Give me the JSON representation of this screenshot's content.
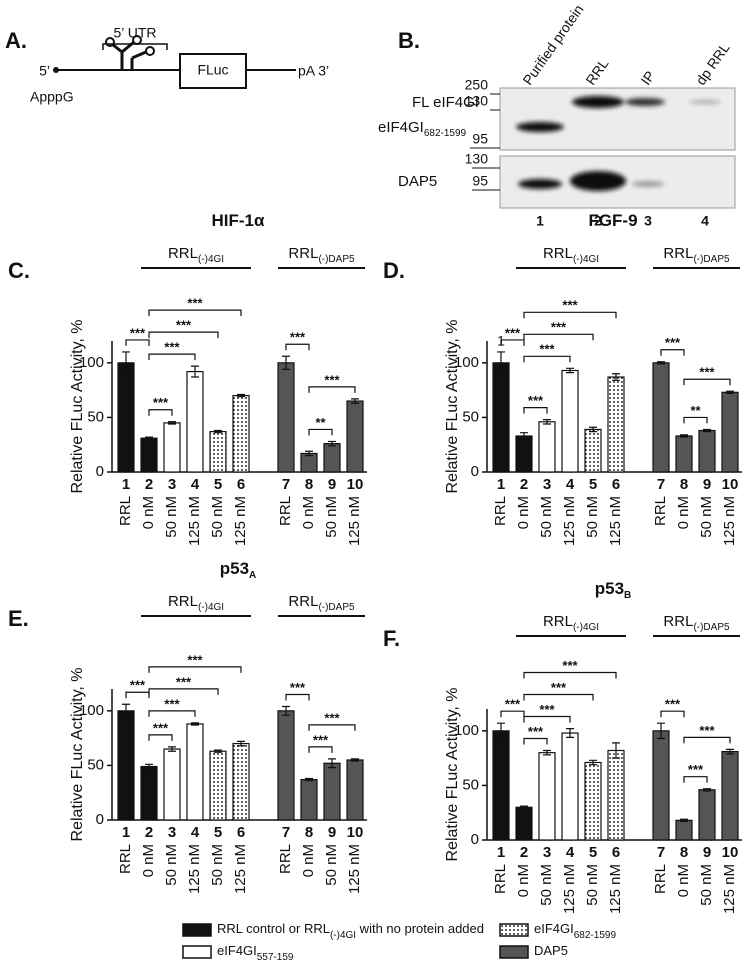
{
  "panel_a": {
    "letter": "A.",
    "utr": "5’ UTR",
    "five": "5’",
    "cap": "ApppG",
    "gene": "FLuc",
    "tail": "pA 3’"
  },
  "panel_b": {
    "letter": "B.",
    "lanes": [
      "Purified protein",
      "RRL",
      "IP",
      "dp RRL"
    ],
    "lane_numbers": [
      "1",
      "2",
      "3",
      "4"
    ],
    "rows": [
      {
        "name": "FL eIF4GI"
      },
      {
        "name": "eIF4GI",
        "sub": "682-1599"
      },
      {
        "name": "DAP5"
      }
    ],
    "markers_top": [
      "250",
      "130",
      "95"
    ],
    "markers_bottom": [
      "130",
      "95"
    ]
  },
  "chart_data": [
    {
      "type": "bar",
      "letter": "C.",
      "title": "HIF-1α",
      "ylabel": "Relative FLuc Activity, %",
      "ylim": [
        0,
        120
      ],
      "yticks": [
        0,
        50,
        100
      ],
      "bar_numbers": [
        "1",
        "2",
        "3",
        "4",
        "5",
        "6",
        "7",
        "8",
        "9",
        "10"
      ],
      "categories": [
        "RRL",
        "0 nM",
        "50 nM",
        "125 nM",
        "50 nM",
        "125 nM",
        "RRL",
        "0 nM",
        "50 nM",
        "125 nM"
      ],
      "values": [
        100,
        31,
        45,
        92,
        37,
        70,
        100,
        17,
        26,
        65
      ],
      "errors": [
        10,
        1,
        1,
        5,
        1,
        1,
        6,
        2,
        2,
        2
      ],
      "colors": [
        "#111111",
        "#111111",
        "#ffffff",
        "#ffffff",
        "dotted",
        "dotted",
        "#555555",
        "#555555",
        "#555555",
        "#555555"
      ],
      "groups": [
        {
          "name": "RRL",
          "sub": "(-)4GI",
          "from": 1,
          "to": 5
        },
        {
          "name": "RRL",
          "sub": "(-)DAP5",
          "from": 6,
          "to": 9
        }
      ],
      "significance": [
        {
          "from": 1,
          "to": 2,
          "label": "***"
        },
        {
          "from": 1,
          "to": 3,
          "label": "***"
        },
        {
          "from": 1,
          "to": 4,
          "label": "***"
        },
        {
          "from": 1,
          "to": 5,
          "label": "***"
        },
        {
          "from": 0,
          "to": 1,
          "label": "***"
        },
        {
          "from": 7,
          "to": 8,
          "label": "**"
        },
        {
          "from": 7,
          "to": 9,
          "label": "***"
        },
        {
          "from": 6,
          "to": 7,
          "label": "***"
        }
      ]
    },
    {
      "type": "bar",
      "letter": "D.",
      "title": "FGF-9",
      "ylabel": "Relative FLuc Activity, %",
      "ylim": [
        0,
        120
      ],
      "yticks": [
        0,
        50,
        100
      ],
      "bar_numbers": [
        "1",
        "2",
        "3",
        "4",
        "5",
        "6",
        "7",
        "8",
        "9",
        "10"
      ],
      "categories": [
        "RRL",
        "0 nM",
        "50 nM",
        "125 nM",
        "50 nM",
        "125 nM",
        "RRL",
        "0 nM",
        "50 nM",
        "125 nM"
      ],
      "values": [
        100,
        33,
        46,
        93,
        39,
        87,
        100,
        33,
        38,
        73
      ],
      "errors": [
        10,
        3,
        2,
        2,
        2,
        3,
        1,
        1,
        1,
        1
      ],
      "colors": [
        "#111111",
        "#111111",
        "#ffffff",
        "#ffffff",
        "dotted",
        "dotted",
        "#555555",
        "#555555",
        "#555555",
        "#555555"
      ],
      "groups": [
        {
          "name": "RRL",
          "sub": "(-)4GI",
          "from": 1,
          "to": 5
        },
        {
          "name": "RRL",
          "sub": "(-)DAP5",
          "from": 6,
          "to": 9
        }
      ],
      "annotations": [
        {
          "text": "1",
          "at": 0
        }
      ],
      "significance": [
        {
          "from": 1,
          "to": 2,
          "label": "***"
        },
        {
          "from": 1,
          "to": 3,
          "label": "***"
        },
        {
          "from": 1,
          "to": 4,
          "label": "***"
        },
        {
          "from": 1,
          "to": 5,
          "label": "***"
        },
        {
          "from": 0,
          "to": 1,
          "label": "***"
        },
        {
          "from": 7,
          "to": 8,
          "label": "**"
        },
        {
          "from": 7,
          "to": 9,
          "label": "***"
        },
        {
          "from": 6,
          "to": 7,
          "label": "***"
        }
      ]
    },
    {
      "type": "bar",
      "letter": "E.",
      "title": "p53",
      "title_sub": "A",
      "ylabel": "Relative FLuc Activity, %",
      "ylim": [
        0,
        120
      ],
      "yticks": [
        0,
        50,
        100
      ],
      "bar_numbers": [
        "1",
        "2",
        "3",
        "4",
        "5",
        "6",
        "7",
        "8",
        "9",
        "10"
      ],
      "categories": [
        "RRL",
        "0 nM",
        "50 nM",
        "125 nM",
        "50 nM",
        "125 nM",
        "RRL",
        "0 nM",
        "50 nM",
        "125 nM"
      ],
      "values": [
        100,
        49,
        65,
        88,
        63,
        70,
        100,
        37,
        52,
        55
      ],
      "errors": [
        6,
        2,
        2,
        1,
        1,
        2,
        4,
        1,
        4,
        1
      ],
      "colors": [
        "#111111",
        "#111111",
        "#ffffff",
        "#ffffff",
        "dotted",
        "dotted",
        "#555555",
        "#555555",
        "#555555",
        "#555555"
      ],
      "groups": [
        {
          "name": "RRL",
          "sub": "(-)4GI",
          "from": 1,
          "to": 5
        },
        {
          "name": "RRL",
          "sub": "(-)DAP5",
          "from": 6,
          "to": 9
        }
      ],
      "significance": [
        {
          "from": 1,
          "to": 2,
          "label": "***"
        },
        {
          "from": 1,
          "to": 3,
          "label": "***"
        },
        {
          "from": 1,
          "to": 4,
          "label": "***"
        },
        {
          "from": 1,
          "to": 5,
          "label": "***"
        },
        {
          "from": 0,
          "to": 1,
          "label": "***"
        },
        {
          "from": 7,
          "to": 8,
          "label": "***"
        },
        {
          "from": 7,
          "to": 9,
          "label": "***"
        },
        {
          "from": 6,
          "to": 7,
          "label": "***"
        }
      ]
    },
    {
      "type": "bar",
      "letter": "F.",
      "title": "p53",
      "title_sub": "B",
      "ylabel": "Relative FLuc Activity, %",
      "ylim": [
        0,
        120
      ],
      "yticks": [
        0,
        50,
        100
      ],
      "bar_numbers": [
        "1",
        "2",
        "3",
        "4",
        "5",
        "6",
        "7",
        "8",
        "9",
        "10"
      ],
      "categories": [
        "RRL",
        "0 nM",
        "50 nM",
        "125 nM",
        "50 nM",
        "125 nM",
        "RRL",
        "0 nM",
        "50 nM",
        "125 nM"
      ],
      "values": [
        100,
        30,
        80,
        98,
        71,
        82,
        100,
        18,
        46,
        81
      ],
      "errors": [
        7,
        1,
        2,
        4,
        2,
        7,
        7,
        1,
        1,
        2
      ],
      "colors": [
        "#111111",
        "#111111",
        "#ffffff",
        "#ffffff",
        "dotted",
        "dotted",
        "#555555",
        "#555555",
        "#555555",
        "#555555"
      ],
      "groups": [
        {
          "name": "RRL",
          "sub": "(-)4GI",
          "from": 1,
          "to": 5
        },
        {
          "name": "RRL",
          "sub": "(-)DAP5",
          "from": 6,
          "to": 9
        }
      ],
      "significance": [
        {
          "from": 1,
          "to": 2,
          "label": "***"
        },
        {
          "from": 1,
          "to": 3,
          "label": "***"
        },
        {
          "from": 1,
          "to": 4,
          "label": "***"
        },
        {
          "from": 1,
          "to": 5,
          "label": "***"
        },
        {
          "from": 0,
          "to": 1,
          "label": "***"
        },
        {
          "from": 7,
          "to": 8,
          "label": "***"
        },
        {
          "from": 7,
          "to": 9,
          "label": "***"
        },
        {
          "from": 6,
          "to": 7,
          "label": "***"
        }
      ]
    }
  ],
  "legend": [
    {
      "label": "RRL control or RRL",
      "sub": "(-)4GI",
      "tail": " with no protein added",
      "color": "#111111"
    },
    {
      "label": "eIF4GI",
      "sub": "557-159",
      "color": "#ffffff"
    },
    {
      "label": "eIF4GI",
      "sub": "682-1599",
      "color": "dotted"
    },
    {
      "label": "DAP5",
      "color": "#555555"
    }
  ]
}
